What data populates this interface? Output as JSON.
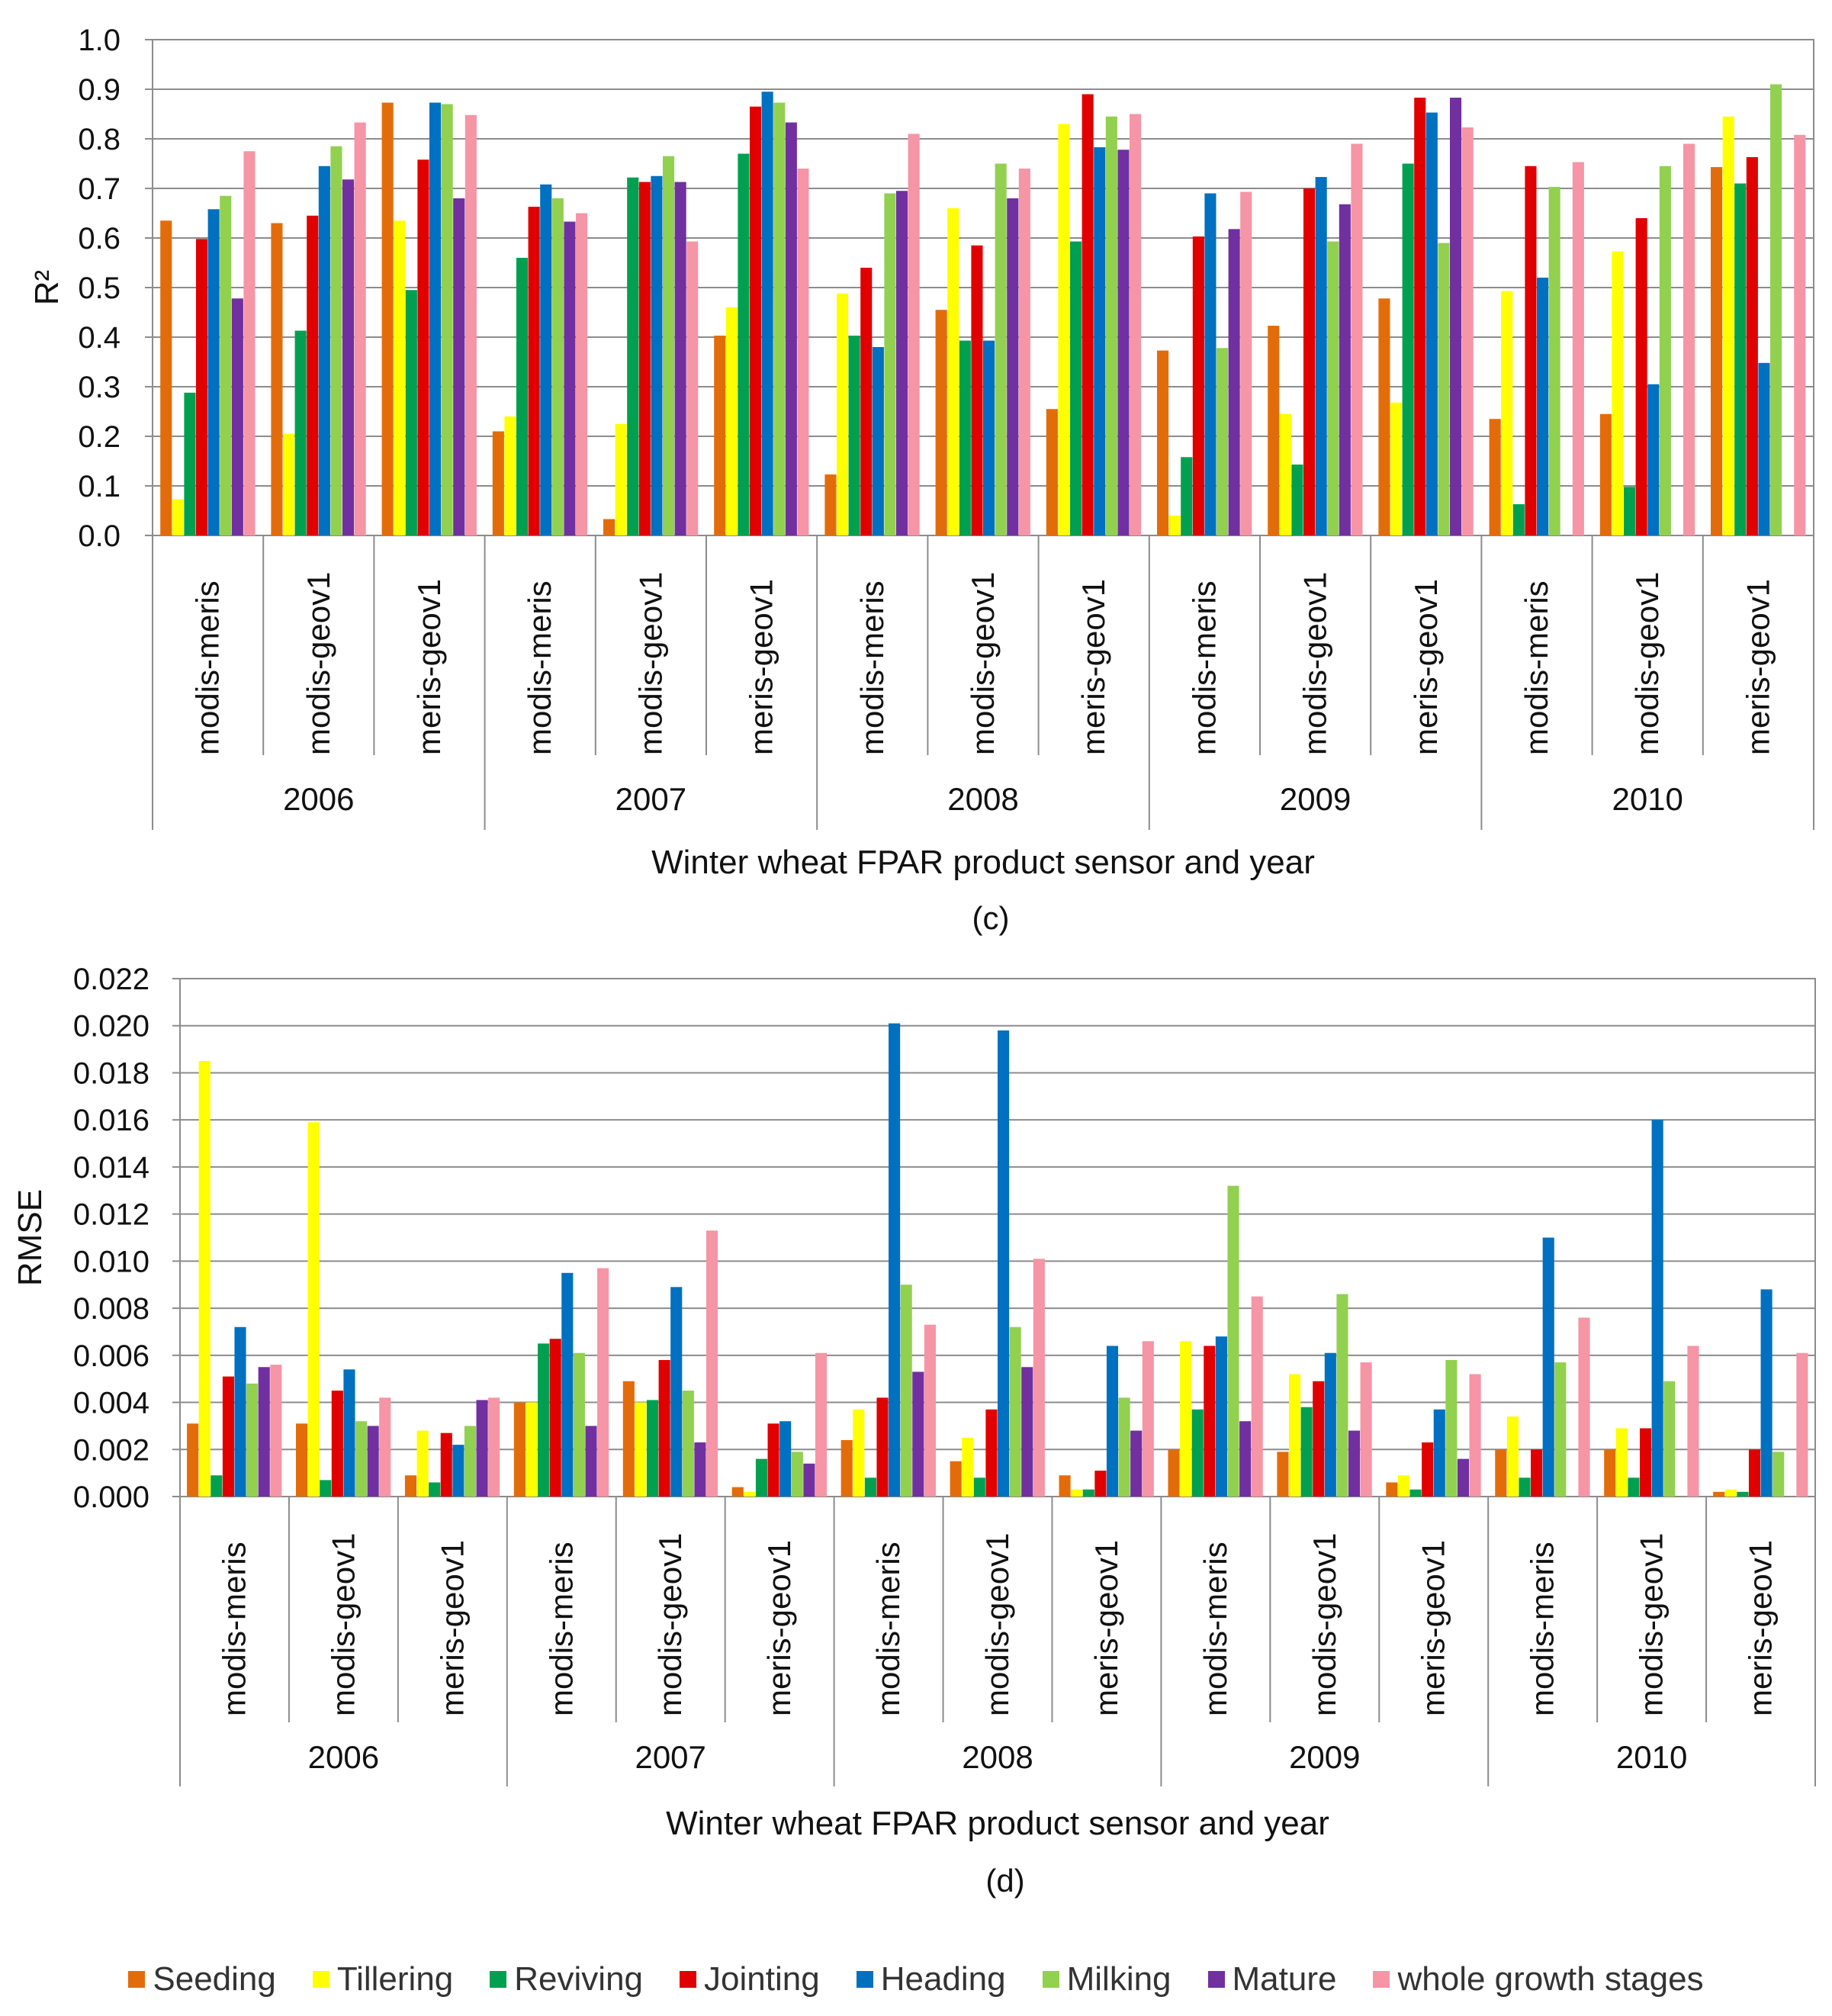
{
  "chart_data": [
    {
      "type": "bar",
      "panel_label": "(c)",
      "ylabel": "R²",
      "xlabel": "Winter wheat FPAR product sensor and year",
      "ylim": [
        0,
        1.0
      ],
      "ytick_step": 0.1,
      "ytick_decimals": 1,
      "ytick_labels": [
        "0.0",
        "0.1",
        "0.2",
        "0.3",
        "0.4",
        "0.5",
        "0.6",
        "0.7",
        "0.8",
        "0.9",
        "1.0"
      ],
      "categories": [
        "modis-meris",
        "modis-geov1",
        "meris-geov1",
        "modis-meris",
        "modis-geov1",
        "meris-geov1",
        "modis-meris",
        "modis-geov1",
        "meris-geov1",
        "modis-meris",
        "modis-geov1",
        "meris-geov1",
        "modis-meris",
        "modis-geov1",
        "meris-geov1"
      ],
      "groups": [
        "2006",
        "2007",
        "2008",
        "2009",
        "2010"
      ],
      "series": [
        {
          "name": "Seeding",
          "values": [
            0.635,
            0.63,
            0.873,
            0.21,
            0.033,
            0.403,
            0.123,
            0.455,
            0.255,
            0.373,
            0.423,
            0.478,
            0.235,
            0.245,
            0.743
          ]
        },
        {
          "name": "Tillering",
          "values": [
            0.073,
            0.205,
            0.635,
            0.24,
            0.225,
            0.46,
            0.488,
            0.66,
            0.83,
            0.04,
            0.245,
            0.268,
            0.493,
            0.573,
            0.845
          ]
        },
        {
          "name": "Reviving",
          "values": [
            0.288,
            0.413,
            0.495,
            0.56,
            0.722,
            0.77,
            0.403,
            0.393,
            0.593,
            0.158,
            0.143,
            0.75,
            0.063,
            0.098,
            0.71
          ]
        },
        {
          "name": "Jointing",
          "values": [
            0.598,
            0.645,
            0.758,
            0.663,
            0.713,
            0.865,
            0.54,
            0.585,
            0.89,
            0.603,
            0.7,
            0.883,
            0.745,
            0.64,
            0.763
          ]
        },
        {
          "name": "Heading",
          "values": [
            0.658,
            0.745,
            0.873,
            0.708,
            0.725,
            0.895,
            0.38,
            0.393,
            0.783,
            0.69,
            0.723,
            0.853,
            0.52,
            0.305,
            0.348
          ]
        },
        {
          "name": "Milking",
          "values": [
            0.685,
            0.785,
            0.87,
            0.68,
            0.765,
            0.873,
            0.69,
            0.75,
            0.845,
            0.378,
            0.593,
            0.59,
            0.703,
            0.745,
            0.91
          ]
        },
        {
          "name": "Mature",
          "values": [
            0.478,
            0.718,
            0.68,
            0.633,
            0.713,
            0.833,
            0.695,
            0.68,
            0.778,
            0.618,
            0.668,
            0.883,
            null,
            null,
            null
          ]
        },
        {
          "name": "whole growth stages",
          "values": [
            0.775,
            0.833,
            0.848,
            0.65,
            0.593,
            0.74,
            0.81,
            0.74,
            0.85,
            0.693,
            0.79,
            0.823,
            0.753,
            0.79,
            0.808
          ]
        }
      ]
    },
    {
      "type": "bar",
      "panel_label": "(d)",
      "ylabel": "RMSE",
      "xlabel": "Winter wheat FPAR product sensor and year",
      "ylim": [
        0,
        0.022
      ],
      "ytick_step": 0.002,
      "ytick_decimals": 3,
      "ytick_labels": [
        "0.000",
        "0.002",
        "0.004",
        "0.006",
        "0.008",
        "0.010",
        "0.012",
        "0.014",
        "0.016",
        "0.018",
        "0.020",
        "0.022"
      ],
      "categories": [
        "modis-meris",
        "modis-geov1",
        "meris-geov1",
        "modis-meris",
        "modis-geov1",
        "meris-geov1",
        "modis-meris",
        "modis-geov1",
        "meris-geov1",
        "modis-meris",
        "modis-geov1",
        "meris-geov1",
        "modis-meris",
        "modis-geov1",
        "meris-geov1"
      ],
      "groups": [
        "2006",
        "2007",
        "2008",
        "2009",
        "2010"
      ],
      "series": [
        {
          "name": "Seeding",
          "values": [
            0.0031,
            0.0031,
            0.0009,
            0.004,
            0.0049,
            0.0004,
            0.0024,
            0.0015,
            0.0009,
            0.002,
            0.0019,
            0.0006,
            0.002,
            0.002,
            0.0002
          ]
        },
        {
          "name": "Tillering",
          "values": [
            0.0185,
            0.0159,
            0.0028,
            0.004,
            0.004,
            0.0002,
            0.0037,
            0.0025,
            0.0003,
            0.0066,
            0.0052,
            0.0009,
            0.0034,
            0.0029,
            0.0003
          ]
        },
        {
          "name": "Reviving",
          "values": [
            0.0009,
            0.0007,
            0.0006,
            0.0065,
            0.0041,
            0.0016,
            0.0008,
            0.0008,
            0.0003,
            0.0037,
            0.0038,
            0.0003,
            0.0008,
            0.0008,
            0.0002
          ]
        },
        {
          "name": "Jointing",
          "values": [
            0.0051,
            0.0045,
            0.0027,
            0.0067,
            0.0058,
            0.0031,
            0.0042,
            0.0037,
            0.0011,
            0.0064,
            0.0049,
            0.0023,
            0.002,
            0.0029,
            0.002
          ]
        },
        {
          "name": "Heading",
          "values": [
            0.0072,
            0.0054,
            0.0022,
            0.0095,
            0.0089,
            0.0032,
            0.0201,
            0.0198,
            0.0064,
            0.0068,
            0.0061,
            0.0037,
            0.011,
            0.016,
            0.0088
          ]
        },
        {
          "name": "Milking",
          "values": [
            0.0048,
            0.0032,
            0.003,
            0.0061,
            0.0045,
            0.0019,
            0.009,
            0.0072,
            0.0042,
            0.0132,
            0.0086,
            0.0058,
            0.0057,
            0.0049,
            0.0019
          ]
        },
        {
          "name": "Mature",
          "values": [
            0.0055,
            0.003,
            0.0041,
            0.003,
            0.0023,
            0.0014,
            0.0053,
            0.0055,
            0.0028,
            0.0032,
            0.0028,
            0.0016,
            null,
            null,
            null
          ]
        },
        {
          "name": "whole growth stages",
          "values": [
            0.0056,
            0.0042,
            0.0042,
            0.0097,
            0.0113,
            0.0061,
            0.0073,
            0.0101,
            0.0066,
            0.0085,
            0.0057,
            0.0052,
            0.0076,
            0.0064,
            0.0061
          ]
        }
      ]
    }
  ],
  "legend": [
    {
      "name": "Seeding",
      "color": "#E36C0A"
    },
    {
      "name": "Tillering",
      "color": "#FFFF00"
    },
    {
      "name": "Reviving",
      "color": "#00A050"
    },
    {
      "name": "Jointing",
      "color": "#E00000"
    },
    {
      "name": "Heading",
      "color": "#0070C0"
    },
    {
      "name": "Milking",
      "color": "#92D050"
    },
    {
      "name": "Mature",
      "color": "#7030A0"
    },
    {
      "name": "whole growth stages",
      "color": "#F595A5"
    }
  ]
}
